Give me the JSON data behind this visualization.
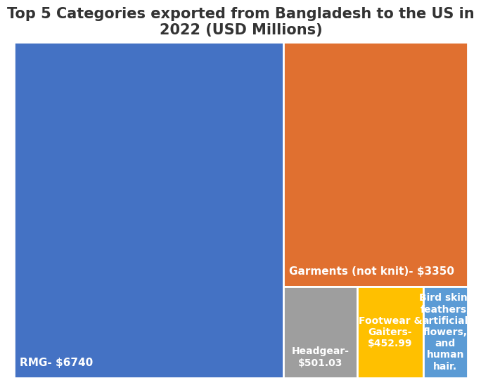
{
  "title": "Top 5 Categories exported from Bangladesh to the US in\n2022 (USD Millions)",
  "labels": [
    "RMG- $6740",
    "Garments (not knit)- $3350",
    "Headgear-\n$501.03",
    "Footwear &\nGaiters-\n$452.99",
    "Bird skin,\nfeathers,\nartificial\nflowers,\nand\nhuman\nhair."
  ],
  "values": [
    6740,
    3350,
    501.03,
    452.99,
    300
  ],
  "colors": [
    "#4472C4",
    "#E07030",
    "#9E9E9E",
    "#FFC000",
    "#5B9BD5"
  ],
  "title_fontsize": 15,
  "label_fontsizes": [
    11,
    11,
    10,
    10,
    10
  ],
  "background_color": "#ffffff",
  "text_color": "#ffffff"
}
